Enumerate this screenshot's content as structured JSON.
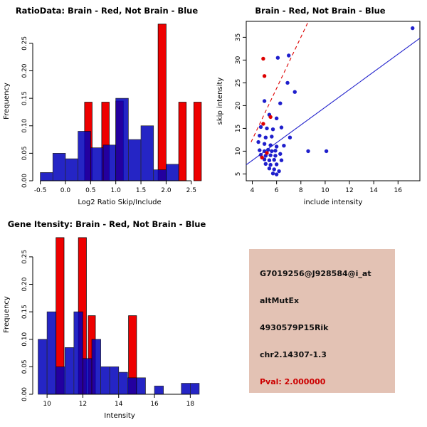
{
  "colors": {
    "brain_red": "#EE0000",
    "not_brain_blue": "#1414CC",
    "overlap_purple": "#7B2D9E",
    "info_box_bg": "#E3C2B4",
    "pval_red": "#CC0000"
  },
  "chart_data": [
    {
      "id": "ratio-hist",
      "type": "bar",
      "title": "RatioData: Brain - Red, Not Brain - Blue",
      "xlabel": "Log2 Ratio Skip/Include",
      "ylabel": "Frequency",
      "xlim": [
        -0.65,
        2.8
      ],
      "ylim": [
        0,
        0.29
      ],
      "xticks": [
        -0.5,
        0.0,
        0.5,
        1.0,
        1.5,
        2.0,
        2.5
      ],
      "xtick_labels": [
        "-0.5",
        "0.0",
        "0.5",
        "1.0",
        "1.5",
        "2.0",
        "2.5"
      ],
      "yticks": [
        0,
        0.05,
        0.1,
        0.15,
        0.2,
        0.25
      ],
      "ytick_labels": [
        "0.00",
        "0.05",
        "0.10",
        "0.15",
        "0.20",
        "0.25"
      ],
      "series": [
        {
          "name": "Brain (Red)",
          "color": "#EE0000",
          "opacity": 1,
          "bars": [
            {
              "x": 0.38,
              "w": 0.15,
              "h": 0.143
            },
            {
              "x": 0.72,
              "w": 0.15,
              "h": 0.143
            },
            {
              "x": 1.0,
              "w": 0.15,
              "h": 0.145
            },
            {
              "x": 1.84,
              "w": 0.16,
              "h": 0.285
            },
            {
              "x": 2.25,
              "w": 0.15,
              "h": 0.143
            },
            {
              "x": 2.55,
              "w": 0.15,
              "h": 0.143
            }
          ]
        },
        {
          "name": "Not Brain (Blue)",
          "color": "#0000BB",
          "opacity": 0.85,
          "bars": [
            {
              "x": -0.5,
              "w": 0.25,
              "h": 0.015
            },
            {
              "x": -0.25,
              "w": 0.25,
              "h": 0.05
            },
            {
              "x": 0.0,
              "w": 0.25,
              "h": 0.04
            },
            {
              "x": 0.25,
              "w": 0.25,
              "h": 0.09
            },
            {
              "x": 0.5,
              "w": 0.25,
              "h": 0.06
            },
            {
              "x": 0.75,
              "w": 0.25,
              "h": 0.065
            },
            {
              "x": 1.0,
              "w": 0.25,
              "h": 0.15
            },
            {
              "x": 1.25,
              "w": 0.25,
              "h": 0.075
            },
            {
              "x": 1.5,
              "w": 0.25,
              "h": 0.1
            },
            {
              "x": 1.75,
              "w": 0.25,
              "h": 0.02
            },
            {
              "x": 2.0,
              "w": 0.25,
              "h": 0.03
            }
          ]
        }
      ]
    },
    {
      "id": "scatter",
      "type": "scatter",
      "title": "Brain - Red, Not Brain - Blue",
      "xlabel": "include intensity",
      "ylabel": "skip intensity",
      "xlim": [
        3.5,
        17.8
      ],
      "ylim": [
        3.5,
        38.5
      ],
      "xticks": [
        4,
        6,
        8,
        10,
        12,
        14,
        16
      ],
      "xtick_labels": [
        "4",
        "6",
        "8",
        "10",
        "12",
        "14",
        "16"
      ],
      "yticks": [
        5,
        10,
        15,
        20,
        25,
        30,
        35
      ],
      "ytick_labels": [
        "5",
        "10",
        "15",
        "20",
        "25",
        "30",
        "35"
      ],
      "series": [
        {
          "name": "Not Brain (Blue)",
          "color": "#1F1FCC",
          "points": [
            [
              17.2,
              37
            ],
            [
              6.1,
              30.5
            ],
            [
              7.0,
              31
            ],
            [
              6.9,
              25
            ],
            [
              7.5,
              23
            ],
            [
              5.0,
              21
            ],
            [
              6.3,
              20.5
            ],
            [
              5.4,
              18
            ],
            [
              6.0,
              17.2
            ],
            [
              4.7,
              15.3
            ],
            [
              5.2,
              15
            ],
            [
              5.7,
              14.8
            ],
            [
              6.4,
              15.2
            ],
            [
              4.6,
              13.4
            ],
            [
              5.1,
              13
            ],
            [
              5.6,
              13.2
            ],
            [
              7.1,
              13
            ],
            [
              4.5,
              12
            ],
            [
              5.0,
              11.6
            ],
            [
              5.5,
              11.3
            ],
            [
              6.0,
              11
            ],
            [
              6.6,
              11.2
            ],
            [
              4.6,
              10.2
            ],
            [
              5.0,
              10
            ],
            [
              5.3,
              10.3
            ],
            [
              5.6,
              10
            ],
            [
              5.9,
              10.1
            ],
            [
              8.6,
              10
            ],
            [
              10.1,
              10
            ],
            [
              4.7,
              9.2
            ],
            [
              5.1,
              9
            ],
            [
              5.5,
              9.1
            ],
            [
              5.9,
              9
            ],
            [
              6.3,
              9.4
            ],
            [
              5.0,
              8.2
            ],
            [
              5.4,
              8
            ],
            [
              5.8,
              8.1
            ],
            [
              6.4,
              8
            ],
            [
              5.1,
              7.2
            ],
            [
              5.5,
              7
            ],
            [
              6.0,
              7.1
            ],
            [
              5.4,
              6.2
            ],
            [
              5.8,
              6
            ],
            [
              6.2,
              5.6
            ],
            [
              5.7,
              5.1
            ],
            [
              6.0,
              4.9
            ]
          ]
        },
        {
          "name": "Brain (Red)",
          "color": "#DD0000",
          "points": [
            [
              4.9,
              30.3
            ],
            [
              5.0,
              26.5
            ],
            [
              5.5,
              17.5
            ],
            [
              4.9,
              16
            ],
            [
              5.2,
              9.6
            ],
            [
              4.8,
              8.6
            ]
          ]
        }
      ],
      "lines": [
        {
          "name": "brain-fit-line",
          "color": "#DD0000",
          "dash": "5,4",
          "x1": 3.9,
          "y1": 12,
          "x2": 8.6,
          "y2": 38.4
        },
        {
          "name": "not-brain-fit-line",
          "color": "#2222CC",
          "dash": "",
          "x1": 3.5,
          "y1": 7.0,
          "x2": 17.8,
          "y2": 34.8
        }
      ]
    },
    {
      "id": "gene-hist",
      "type": "bar",
      "title": "Gene Itensity: Brain - Red, Not Brain - Blue",
      "xlabel": "Intensity",
      "ylabel": "Frequency",
      "xlim": [
        9.2,
        18.9
      ],
      "ylim": [
        0,
        0.29
      ],
      "xticks": [
        10,
        12,
        14,
        16,
        18
      ],
      "xtick_labels": [
        "10",
        "12",
        "14",
        "16",
        "18"
      ],
      "yticks": [
        0,
        0.05,
        0.1,
        0.15,
        0.2,
        0.25
      ],
      "ytick_labels": [
        "0.00",
        "0.05",
        "0.10",
        "0.15",
        "0.20",
        "0.25"
      ],
      "series": [
        {
          "name": "Brain (Red)",
          "color": "#EE0000",
          "opacity": 1,
          "bars": [
            {
              "x": 10.5,
              "w": 0.45,
              "h": 0.285
            },
            {
              "x": 11.75,
              "w": 0.45,
              "h": 0.285
            },
            {
              "x": 12.3,
              "w": 0.4,
              "h": 0.143
            },
            {
              "x": 14.55,
              "w": 0.45,
              "h": 0.143
            }
          ]
        },
        {
          "name": "Not Brain (Blue)",
          "color": "#0000BB",
          "opacity": 0.85,
          "bars": [
            {
              "x": 9.5,
              "w": 0.5,
              "h": 0.1
            },
            {
              "x": 10.0,
              "w": 0.5,
              "h": 0.15
            },
            {
              "x": 10.5,
              "w": 0.5,
              "h": 0.05
            },
            {
              "x": 11.0,
              "w": 0.5,
              "h": 0.085
            },
            {
              "x": 11.5,
              "w": 0.5,
              "h": 0.15
            },
            {
              "x": 12.0,
              "w": 0.5,
              "h": 0.065
            },
            {
              "x": 12.5,
              "w": 0.5,
              "h": 0.1
            },
            {
              "x": 13.0,
              "w": 0.5,
              "h": 0.05
            },
            {
              "x": 13.5,
              "w": 0.5,
              "h": 0.05
            },
            {
              "x": 14.0,
              "w": 0.5,
              "h": 0.04
            },
            {
              "x": 14.5,
              "w": 0.5,
              "h": 0.03
            },
            {
              "x": 15.0,
              "w": 0.5,
              "h": 0.03
            },
            {
              "x": 16.0,
              "w": 0.5,
              "h": 0.015
            },
            {
              "x": 17.5,
              "w": 0.5,
              "h": 0.02
            },
            {
              "x": 18.0,
              "w": 0.5,
              "h": 0.02
            }
          ]
        }
      ]
    }
  ],
  "info_box": {
    "bg_color": "#E3C2B4",
    "pval_color": "#CC0000",
    "lines": [
      {
        "text": "G7019256@J928584@i_at"
      },
      {
        "text": "altMutEx"
      },
      {
        "text": "4930579P15Rik"
      },
      {
        "text": "chr2.14307-1.3"
      },
      {
        "text": "Pval: 2.000000"
      }
    ]
  }
}
